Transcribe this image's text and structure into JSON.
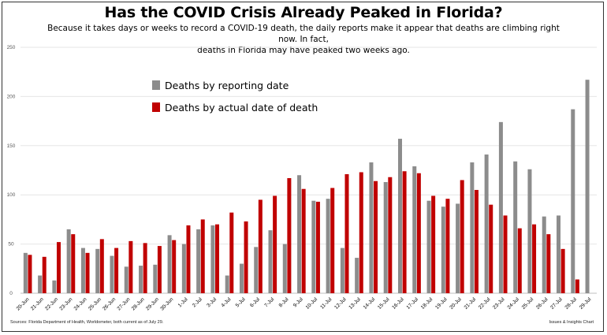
{
  "header": {
    "title": "Has the COVID Crisis Already Peaked in Florida?",
    "subtitle_line1": "Because it takes days or weeks to record a COVID-19 death, the daily reports make it appear that deaths are climbing right now. In fact,",
    "subtitle_line2": "deaths in Florida may have peaked two weeks ago."
  },
  "footer": {
    "source": "Sources: Florida Department of Health, Worldometer, both current as of July 29.",
    "credit": "Issues & Insights Chart"
  },
  "colors": {
    "reporting": "#8c8c8c",
    "actual": "#c00000",
    "grid": "#e6e6e6",
    "axis_text": "#595959"
  },
  "chart_data": {
    "type": "bar",
    "title": "Has the COVID Crisis Already Peaked in Florida?",
    "xlabel": "",
    "ylabel": "",
    "ylim": [
      0,
      250
    ],
    "yticks": [
      0,
      50,
      100,
      150,
      200,
      250
    ],
    "legend_position": "top-left",
    "categories": [
      "20-Jun",
      "21-Jun",
      "22-Jun",
      "23-Jun",
      "24-Jun",
      "25-Jun",
      "26-Jun",
      "27-Jun",
      "28-Jun",
      "29-Jun",
      "30-Jun",
      "1-Jul",
      "2-Jul",
      "3-Jul",
      "4-Jul",
      "5-Jul",
      "6-Jul",
      "7-Jul",
      "8-Jul",
      "9-Jul",
      "10-Jul",
      "11-Jul",
      "12-Jul",
      "13-Jul",
      "14-Jul",
      "15-Jul",
      "16-Jul",
      "17-Jul",
      "18-Jul",
      "19-Jul",
      "20-Jul",
      "21-Jul",
      "22-Jul",
      "23-Jul",
      "24-Jul",
      "25-Jul",
      "26-Jul",
      "27-Jul",
      "28-Jul",
      "29-Jul"
    ],
    "series": [
      {
        "name": "Deaths by reporting date",
        "color": "#8c8c8c",
        "values": [
          41,
          18,
          13,
          65,
          46,
          45,
          38,
          27,
          28,
          29,
          59,
          50,
          65,
          69,
          18,
          30,
          47,
          64,
          50,
          120,
          94,
          96,
          46,
          36,
          133,
          113,
          157,
          129,
          94,
          88,
          91,
          133,
          141,
          174,
          134,
          126,
          78,
          79,
          187,
          217
        ]
      },
      {
        "name": "Deaths by actual date of death",
        "color": "#c00000",
        "values": [
          39,
          37,
          52,
          60,
          41,
          55,
          46,
          53,
          51,
          48,
          54,
          69,
          75,
          70,
          82,
          73,
          95,
          99,
          117,
          106,
          93,
          107,
          121,
          123,
          114,
          118,
          124,
          122,
          99,
          96,
          115,
          105,
          90,
          79,
          66,
          70,
          60,
          45,
          14,
          null
        ]
      }
    ]
  }
}
